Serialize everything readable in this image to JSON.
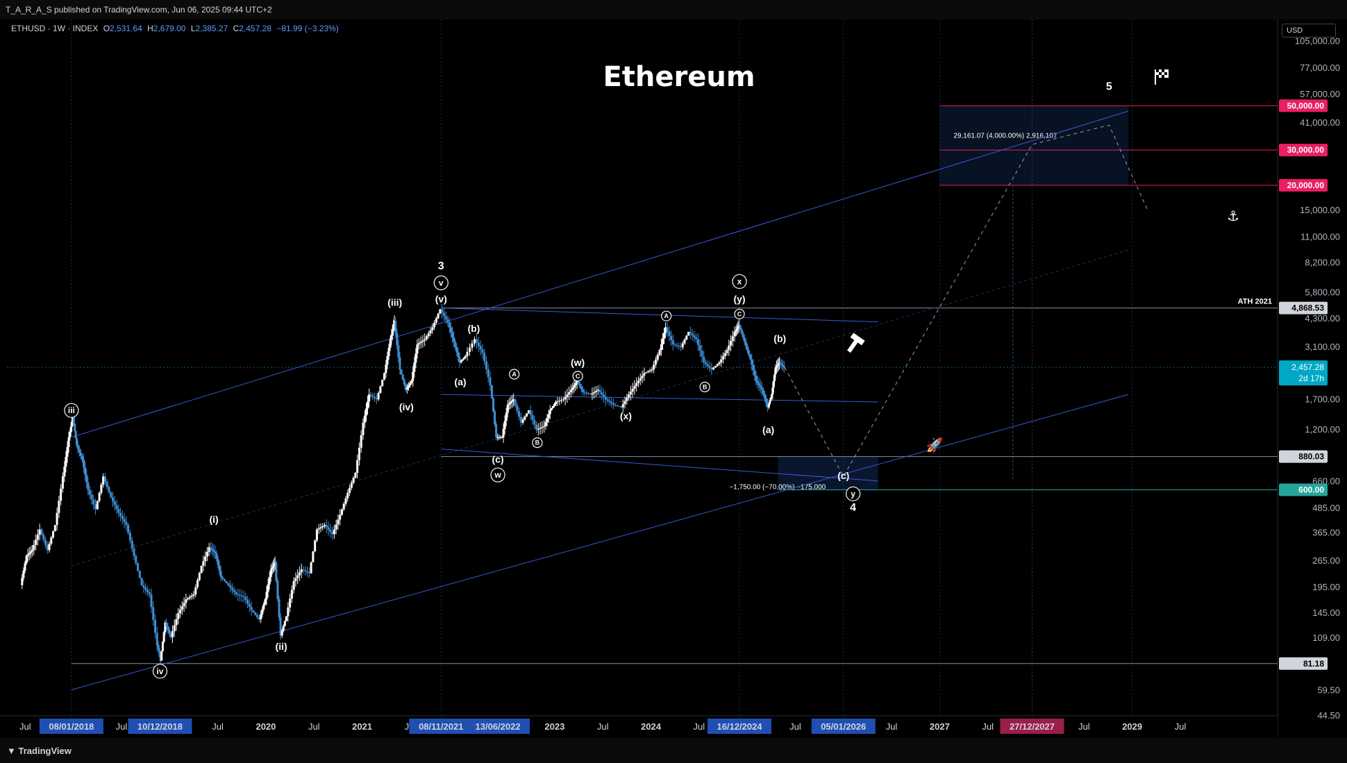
{
  "header": {
    "published": "T_A_R_A_S published on TradingView.com, Jun 06, 2025 09:44 UTC+2"
  },
  "ohlc": {
    "symbol": "ETHUSD · 1W · INDEX",
    "o_label": "O",
    "o": "2,531.64",
    "h_label": "H",
    "h": "2,679.00",
    "l_label": "L",
    "l": "2,385.27",
    "c_label": "C",
    "c": "2,457.28",
    "chg": "−81.99 (−3.23%)"
  },
  "currency": "USD",
  "footer": {
    "brand": "TradingView"
  },
  "colors": {
    "background": "#000000",
    "candle_up": "#ffffff",
    "candle_down": "#3d8fd6",
    "channel": "#3a5bd9",
    "target_red": "#e91e63",
    "level_600": "#26a69a",
    "price_tag": "#00bcd4"
  },
  "chart_data": {
    "type": "candlestick",
    "title": "Ethereum",
    "yscale": "log",
    "ylim": [
      44.5,
      135000
    ],
    "x_range": [
      "2017-07",
      "2030-07"
    ],
    "x_ticks": [
      {
        "t": 2017.54,
        "label": "Jul"
      },
      {
        "t": 2018.02,
        "label": "08/01/2018",
        "highlight": "blue"
      },
      {
        "t": 2018.54,
        "label": "Jul"
      },
      {
        "t": 2018.94,
        "label": "10/12/2018",
        "highlight": "blue"
      },
      {
        "t": 2019.54,
        "label": "Jul"
      },
      {
        "t": 2020.04,
        "label": "2020"
      },
      {
        "t": 2020.54,
        "label": "Jul"
      },
      {
        "t": 2021.04,
        "label": "2021"
      },
      {
        "t": 2021.54,
        "label": "Jul"
      },
      {
        "t": 2021.86,
        "label": "08/11/2021",
        "highlight": "blue"
      },
      {
        "t": 2022.45,
        "label": "13/06/2022",
        "highlight": "blue"
      },
      {
        "t": 2023.04,
        "label": "2023"
      },
      {
        "t": 2023.54,
        "label": "Jul"
      },
      {
        "t": 2024.04,
        "label": "2024"
      },
      {
        "t": 2024.54,
        "label": "Jul"
      },
      {
        "t": 2024.96,
        "label": "16/12/2024",
        "highlight": "blue"
      },
      {
        "t": 2025.54,
        "label": "Jul"
      },
      {
        "t": 2026.04,
        "label": "05/01/2026",
        "highlight": "blue"
      },
      {
        "t": 2026.54,
        "label": "Jul"
      },
      {
        "t": 2027.04,
        "label": "2027"
      },
      {
        "t": 2027.54,
        "label": "Jul"
      },
      {
        "t": 2028.0,
        "label": "27/12/2027",
        "highlight": "red"
      },
      {
        "t": 2028.54,
        "label": "Jul"
      },
      {
        "t": 2029.04,
        "label": "2029"
      },
      {
        "t": 2029.54,
        "label": "Jul"
      }
    ],
    "y_ticks": [
      "105,000.00",
      "77,000.00",
      "57,000.00",
      "41,000.00",
      "15,000.00",
      "11,000.00",
      "8,200.00",
      "5,800.00",
      "4,300.00",
      "3,100.00",
      "1,700.00",
      "1,200.00",
      "660.00",
      "485.00",
      "365.00",
      "265.00",
      "195.00",
      "145.00",
      "109.00",
      "59.50",
      "44.50"
    ],
    "y_tick_values": [
      105000,
      77000,
      57000,
      41000,
      15000,
      11000,
      8200,
      5800,
      4300,
      3100,
      1700,
      1200,
      660,
      485,
      365,
      265,
      195,
      145,
      109,
      59.5,
      44.5
    ],
    "price_tags": [
      {
        "label": "50,000.00",
        "value": 50000,
        "color": "#e91e63"
      },
      {
        "label": "30,000.00",
        "value": 30000,
        "color": "#e91e63"
      },
      {
        "label": "20,000.00",
        "value": 20000,
        "color": "#e91e63"
      },
      {
        "label": "4,868.53",
        "value": 4868.53,
        "color": "#ffffff"
      },
      {
        "label": "880.03",
        "value": 880.03,
        "color": "#ffffff"
      },
      {
        "label": "600.00",
        "value": 600,
        "color": "#26a69a"
      },
      {
        "label": "81.18",
        "value": 81.18,
        "color": "#ffffff"
      }
    ],
    "last_price": {
      "label": "2,457.28",
      "countdown": "2d 17h",
      "value": 2457.28
    },
    "horizontal_levels": [
      {
        "value": 4868.53,
        "label": "ATH 2021"
      },
      {
        "value": 880.03
      },
      {
        "value": 600
      },
      {
        "value": 81.18
      }
    ],
    "price_path": [
      [
        2017.5,
        200
      ],
      [
        2017.56,
        280
      ],
      [
        2017.62,
        300
      ],
      [
        2017.7,
        380
      ],
      [
        2017.78,
        300
      ],
      [
        2017.86,
        400
      ],
      [
        2017.94,
        700
      ],
      [
        2018.0,
        1100
      ],
      [
        2018.04,
        1400
      ],
      [
        2018.08,
        1000
      ],
      [
        2018.14,
        850
      ],
      [
        2018.2,
        600
      ],
      [
        2018.28,
        480
      ],
      [
        2018.36,
        700
      ],
      [
        2018.44,
        550
      ],
      [
        2018.52,
        460
      ],
      [
        2018.6,
        400
      ],
      [
        2018.68,
        280
      ],
      [
        2018.76,
        200
      ],
      [
        2018.84,
        180
      ],
      [
        2018.92,
        100
      ],
      [
        2018.95,
        84
      ],
      [
        2019.0,
        130
      ],
      [
        2019.06,
        110
      ],
      [
        2019.14,
        145
      ],
      [
        2019.22,
        170
      ],
      [
        2019.3,
        180
      ],
      [
        2019.38,
        250
      ],
      [
        2019.46,
        310
      ],
      [
        2019.52,
        290
      ],
      [
        2019.58,
        220
      ],
      [
        2019.66,
        200
      ],
      [
        2019.74,
        180
      ],
      [
        2019.82,
        175
      ],
      [
        2019.9,
        150
      ],
      [
        2019.98,
        135
      ],
      [
        2020.04,
        170
      ],
      [
        2020.1,
        240
      ],
      [
        2020.14,
        260
      ],
      [
        2020.2,
        112
      ],
      [
        2020.26,
        140
      ],
      [
        2020.34,
        210
      ],
      [
        2020.42,
        240
      ],
      [
        2020.5,
        230
      ],
      [
        2020.58,
        380
      ],
      [
        2020.66,
        400
      ],
      [
        2020.74,
        360
      ],
      [
        2020.82,
        450
      ],
      [
        2020.9,
        580
      ],
      [
        2020.98,
        730
      ],
      [
        2021.06,
        1300
      ],
      [
        2021.12,
        1800
      ],
      [
        2021.2,
        1700
      ],
      [
        2021.28,
        2300
      ],
      [
        2021.34,
        3400
      ],
      [
        2021.38,
        4200
      ],
      [
        2021.44,
        2400
      ],
      [
        2021.5,
        1900
      ],
      [
        2021.56,
        2100
      ],
      [
        2021.62,
        3200
      ],
      [
        2021.7,
        3400
      ],
      [
        2021.78,
        3900
      ],
      [
        2021.86,
        4800
      ],
      [
        2021.94,
        4100
      ],
      [
        2022.0,
        3300
      ],
      [
        2022.06,
        2600
      ],
      [
        2022.12,
        2800
      ],
      [
        2022.22,
        3400
      ],
      [
        2022.3,
        2900
      ],
      [
        2022.38,
        2000
      ],
      [
        2022.44,
        1100
      ],
      [
        2022.5,
        1100
      ],
      [
        2022.56,
        1600
      ],
      [
        2022.62,
        1700
      ],
      [
        2022.7,
        1300
      ],
      [
        2022.78,
        1500
      ],
      [
        2022.86,
        1200
      ],
      [
        2022.94,
        1250
      ],
      [
        2023.0,
        1500
      ],
      [
        2023.06,
        1650
      ],
      [
        2023.14,
        1700
      ],
      [
        2023.22,
        1900
      ],
      [
        2023.28,
        2100
      ],
      [
        2023.34,
        1850
      ],
      [
        2023.42,
        1800
      ],
      [
        2023.5,
        1900
      ],
      [
        2023.58,
        1700
      ],
      [
        2023.66,
        1600
      ],
      [
        2023.74,
        1550
      ],
      [
        2023.82,
        1800
      ],
      [
        2023.9,
        2050
      ],
      [
        2023.98,
        2300
      ],
      [
        2024.06,
        2400
      ],
      [
        2024.14,
        3000
      ],
      [
        2024.2,
        3900
      ],
      [
        2024.28,
        3200
      ],
      [
        2024.36,
        3100
      ],
      [
        2024.44,
        3700
      ],
      [
        2024.52,
        3400
      ],
      [
        2024.6,
        2600
      ],
      [
        2024.68,
        2400
      ],
      [
        2024.76,
        2600
      ],
      [
        2024.84,
        3000
      ],
      [
        2024.92,
        3700
      ],
      [
        2024.96,
        4000
      ],
      [
        2025.02,
        3300
      ],
      [
        2025.08,
        2700
      ],
      [
        2025.14,
        2100
      ],
      [
        2025.2,
        1900
      ],
      [
        2025.26,
        1550
      ],
      [
        2025.3,
        1800
      ],
      [
        2025.34,
        2450
      ],
      [
        2025.38,
        2600
      ],
      [
        2025.43,
        2457
      ]
    ],
    "projection_path": [
      [
        2025.43,
        2457
      ],
      [
        2026.04,
        700
      ],
      [
        2028.0,
        32000
      ],
      [
        2028.8,
        40000
      ],
      [
        2029.2,
        15000
      ]
    ],
    "channel_lines": [
      {
        "from": [
          2018.02,
          1100
        ],
        "to": [
          2029.0,
          47000
        ]
      },
      {
        "from": [
          2018.02,
          60
        ],
        "to": [
          2029.0,
          1800
        ]
      },
      {
        "from": [
          2018.02,
          250
        ],
        "to": [
          2029.0,
          9500
        ]
      },
      {
        "from": [
          2021.86,
          4868
        ],
        "to": [
          2026.4,
          4150
        ]
      },
      {
        "from": [
          2021.86,
          1800
        ],
        "to": [
          2026.4,
          1650
        ]
      },
      {
        "from": [
          2021.86,
          960
        ],
        "to": [
          2026.4,
          665
        ]
      }
    ],
    "target_box": {
      "x0": 2027.04,
      "x1": 2029.0,
      "y0": 20000,
      "y1": 50000,
      "label": "29,161.07 (4,000.00%) 2,916,107"
    },
    "drop_box": {
      "x0": 2025.36,
      "x1": 2026.4,
      "y0": 600,
      "y1": 880,
      "label": "−1,750.00 (−70.00%) −175,000"
    },
    "wave_labels": [
      {
        "t": 2018.02,
        "v": 1450,
        "text": "iii",
        "circled": true
      },
      {
        "t": 2018.94,
        "v": 72,
        "text": "iv",
        "circled": true
      },
      {
        "t": 2019.5,
        "v": 410,
        "text": "(i)"
      },
      {
        "t": 2020.2,
        "v": 95,
        "text": "(ii)"
      },
      {
        "t": 2021.38,
        "v": 5000,
        "text": "(iii)"
      },
      {
        "t": 2021.5,
        "v": 1500,
        "text": "(iv)"
      },
      {
        "t": 2021.86,
        "v": 5200,
        "text": "(v)"
      },
      {
        "t": 2021.86,
        "v": 6300,
        "text": "v",
        "circled": true
      },
      {
        "t": 2021.86,
        "v": 7600,
        "text": "3",
        "big": true
      },
      {
        "t": 2022.2,
        "v": 3700,
        "text": "(b)"
      },
      {
        "t": 2022.06,
        "v": 2000,
        "text": "(a)"
      },
      {
        "t": 2022.45,
        "v": 820,
        "text": "(c)"
      },
      {
        "t": 2022.45,
        "v": 690,
        "text": "w",
        "circled": true
      },
      {
        "t": 2022.62,
        "v": 2200,
        "text": "A",
        "circled": true,
        "small": true
      },
      {
        "t": 2022.86,
        "v": 1000,
        "text": "B",
        "circled": true,
        "small": true
      },
      {
        "t": 2023.28,
        "v": 2500,
        "text": "(w)"
      },
      {
        "t": 2023.28,
        "v": 2150,
        "text": "C",
        "circled": true,
        "small": true
      },
      {
        "t": 2023.78,
        "v": 1350,
        "text": "(x)"
      },
      {
        "t": 2024.2,
        "v": 4300,
        "text": "A",
        "circled": true,
        "small": true
      },
      {
        "t": 2024.6,
        "v": 1900,
        "text": "B",
        "circled": true,
        "small": true
      },
      {
        "t": 2024.96,
        "v": 6400,
        "text": "x",
        "circled": true
      },
      {
        "t": 2024.96,
        "v": 5200,
        "text": "(y)"
      },
      {
        "t": 2024.96,
        "v": 4400,
        "text": "C",
        "circled": true,
        "small": true
      },
      {
        "t": 2025.38,
        "v": 3300,
        "text": "(b)"
      },
      {
        "t": 2025.26,
        "v": 1150,
        "text": "(a)"
      },
      {
        "t": 2026.04,
        "v": 680,
        "text": "(c)"
      },
      {
        "t": 2026.14,
        "v": 555,
        "text": "y",
        "circled": true
      },
      {
        "t": 2026.14,
        "v": 470,
        "text": "4",
        "big": true
      },
      {
        "t": 2028.8,
        "v": 60000,
        "text": "5",
        "big": true
      }
    ]
  }
}
